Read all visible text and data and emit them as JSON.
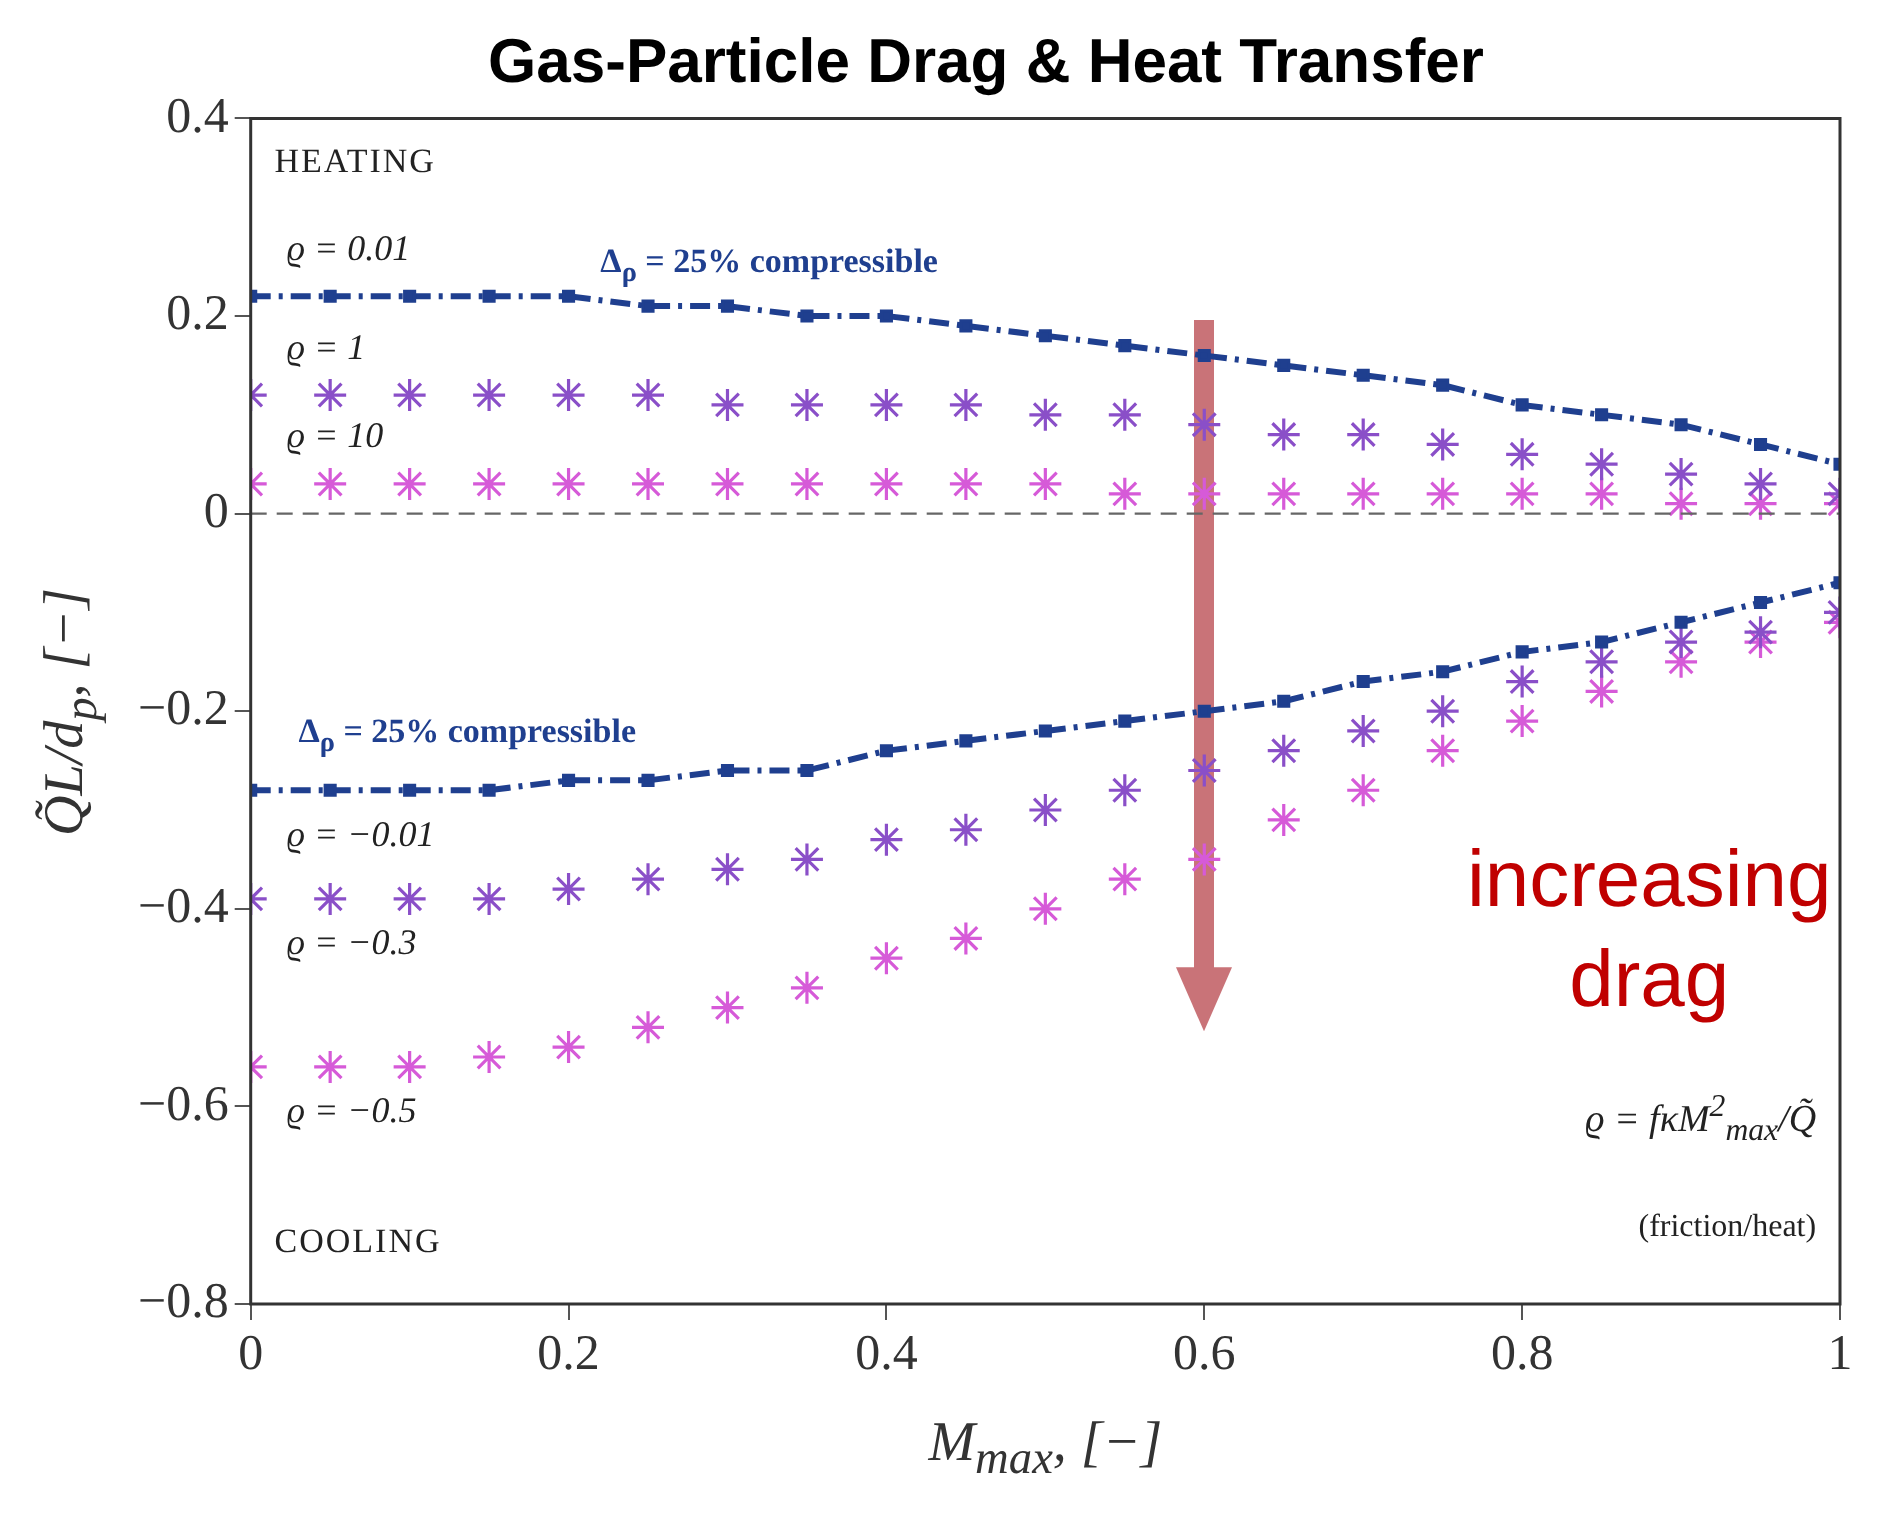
{
  "chart_data": {
    "type": "line",
    "title": "Gas-Particle Drag & Heat Transfer",
    "xlabel": "M$_{max}$, [−]",
    "ylabel": "Q̃L/d$_{p}$, [−]",
    "x": [
      0,
      0.05,
      0.1,
      0.15,
      0.2,
      0.25,
      0.3,
      0.35,
      0.4,
      0.45,
      0.5,
      0.55,
      0.6,
      0.65,
      0.7,
      0.75,
      0.8,
      0.85,
      0.9,
      0.95,
      1
    ],
    "series": [
      {
        "name": "ϱ = 0.01",
        "type": "line",
        "color": "#1f3f8f",
        "marker": "square",
        "line_style": "dashed",
        "values": [
          0.22,
          0.22,
          0.22,
          0.22,
          0.22,
          0.21,
          0.21,
          0.2,
          0.2,
          0.19,
          0.18,
          0.17,
          0.16,
          0.15,
          0.14,
          0.13,
          0.11,
          0.1,
          0.09,
          0.07,
          0.05
        ]
      },
      {
        "name": "ϱ = 1",
        "type": "scatter",
        "color": "#8a4fc8",
        "marker": "cross",
        "values": [
          0.12,
          0.12,
          0.12,
          0.12,
          0.12,
          0.12,
          0.11,
          0.11,
          0.11,
          0.11,
          0.1,
          0.1,
          0.09,
          0.08,
          0.08,
          0.07,
          0.06,
          0.05,
          0.04,
          0.03,
          0.02
        ]
      },
      {
        "name": "ϱ = 10",
        "type": "scatter",
        "color": "#d65ad8",
        "marker": "cross",
        "values": [
          0.03,
          0.03,
          0.03,
          0.03,
          0.03,
          0.03,
          0.03,
          0.03,
          0.03,
          0.03,
          0.03,
          0.02,
          0.02,
          0.02,
          0.02,
          0.02,
          0.02,
          0.02,
          0.01,
          0.01,
          0.01
        ]
      },
      {
        "name": "ϱ = −0.01",
        "type": "line",
        "color": "#1f3f8f",
        "marker": "square",
        "line_style": "dashed",
        "values": [
          -0.28,
          -0.28,
          -0.28,
          -0.28,
          -0.27,
          -0.27,
          -0.26,
          -0.26,
          -0.24,
          -0.23,
          -0.22,
          -0.21,
          -0.2,
          -0.19,
          -0.17,
          -0.16,
          -0.14,
          -0.13,
          -0.11,
          -0.09,
          -0.07
        ]
      },
      {
        "name": "ϱ = −0.3",
        "type": "scatter",
        "color": "#8a4fc8",
        "marker": "cross",
        "values": [
          -0.39,
          -0.39,
          -0.39,
          -0.39,
          -0.38,
          -0.37,
          -0.36,
          -0.35,
          -0.33,
          -0.32,
          -0.3,
          -0.28,
          -0.26,
          -0.24,
          -0.22,
          -0.2,
          -0.17,
          -0.15,
          -0.13,
          -0.12,
          -0.1
        ]
      },
      {
        "name": "ϱ = −0.5",
        "type": "scatter",
        "color": "#d65ad8",
        "marker": "cross",
        "values": [
          -0.56,
          -0.56,
          -0.56,
          -0.55,
          -0.54,
          -0.52,
          -0.5,
          -0.48,
          -0.45,
          -0.43,
          -0.4,
          -0.37,
          -0.35,
          -0.31,
          -0.28,
          -0.24,
          -0.21,
          -0.18,
          -0.15,
          -0.13,
          -0.11
        ]
      }
    ],
    "xlim": [
      0,
      1
    ],
    "xticks": [
      0,
      0.2,
      0.4,
      0.6,
      0.8,
      1
    ],
    "ylim": [
      -0.8,
      0.4
    ],
    "yticks": [
      {
        "value": -0.8,
        "label": "−0.8"
      },
      {
        "value": -0.6,
        "label": "−0.6"
      },
      {
        "value": -0.4,
        "label": "−0.4"
      },
      {
        "value": -0.2,
        "label": "−0.2"
      },
      0,
      0.2,
      0.4
    ],
    "ref_lines": [
      {
        "axis": "y",
        "value": 0,
        "color": "#666666",
        "line_style": "dashed"
      }
    ],
    "annotations": [
      "HEATING",
      "COOLING",
      "ϱ = fκM$^{2}$$_{max}$/Q̃",
      "(friction/heat)",
      "increasing drag",
      "Δ$_{ρ}$ = 25% compressible",
      "Δ$_{ρ}$ = 25% compressible"
    ]
  }
}
